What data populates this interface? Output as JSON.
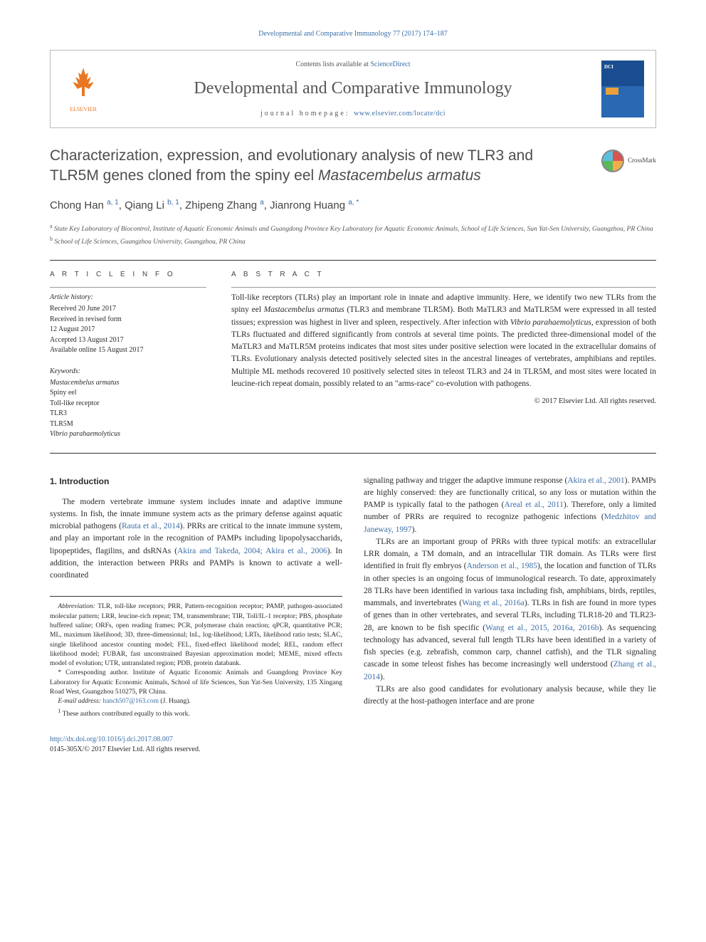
{
  "header": {
    "journal_ref": "Developmental and Comparative Immunology 77 (2017) 174–187",
    "contents_line_prefix": "Contents lists available at ",
    "contents_line_link": "ScienceDirect",
    "journal_title": "Developmental and Comparative Immunology",
    "homepage_prefix": "journal homepage: ",
    "homepage_link": "www.elsevier.com/locate/dci",
    "elsevier_label": "ELSEVIER"
  },
  "crossmark_label": "CrossMark",
  "title": "Characterization, expression, and evolutionary analysis of new TLR3 and TLR5M genes cloned from the spiny eel Mastacembelus armatus",
  "authors_html": "Chong Han <sup>a, 1</sup>, Qiang Li <sup>b, 1</sup>, Zhipeng Zhang <sup>a</sup>, Jianrong Huang <sup>a, *</sup>",
  "affiliations": {
    "a": "State Key Laboratory of Biocontrol, Institute of Aquatic Economic Animals and Guangdong Province Key Laboratory for Aquatic Economic Animals, School of Life Sciences, Sun Yat-Sen University, Guangzhou, PR China",
    "b": "School of Life Sciences, Guangzhou University, Guangzhou, PR China"
  },
  "article_info": {
    "heading": "A R T I C L E  I N F O",
    "history_label": "Article history:",
    "history": [
      "Received 20 June 2017",
      "Received in revised form",
      "12 August 2017",
      "Accepted 13 August 2017",
      "Available online 15 August 2017"
    ],
    "keywords_label": "Keywords:",
    "keywords": [
      "Mastacembelus armatus",
      "Spiny eel",
      "Toll-like receptor",
      "TLR3",
      "TLR5M",
      "Vibrio parahaemolyticus"
    ]
  },
  "abstract": {
    "heading": "A B S T R A C T",
    "text": "Toll-like receptors (TLRs) play an important role in innate and adaptive immunity. Here, we identify two new TLRs from the spiny eel Mastacembelus armatus (TLR3 and membrane TLR5M). Both MaTLR3 and MaTLR5M were expressed in all tested tissues; expression was highest in liver and spleen, respectively. After infection with Vibrio parahaemolyticus, expression of both TLRs fluctuated and differed significantly from controls at several time points. The predicted three-dimensional model of the MaTLR3 and MaTLR5M proteins indicates that most sites under positive selection were located in the extracellular domains of TLRs. Evolutionary analysis detected positively selected sites in the ancestral lineages of vertebrates, amphibians and reptiles. Multiple ML methods recovered 10 positively selected sites in teleost TLR3 and 24 in TLR5M, and most sites were located in leucine-rich repeat domain, possibly related to an \"arms-race\" co-evolution with pathogens.",
    "copyright": "© 2017 Elsevier Ltd. All rights reserved."
  },
  "body": {
    "intro_heading": "1. Introduction",
    "col1_p1_parts": [
      "The modern vertebrate immune system includes innate and adaptive immune systems. In fish, the innate immune system acts as the primary defense against aquatic microbial pathogens (",
      "Rauta et al., 2014",
      "). PRRs are critical to the innate immune system, and play an important role in the recognition of PAMPs including lipopolysaccharids, lipopeptides, flagilins, and dsRNAs (",
      "Akira and Takeda, 2004; Akira et al., 2006",
      "). In addition, the interaction between PRRs and PAMPs is known to activate a well-coordinated"
    ],
    "col2_p1_parts": [
      "signaling pathway and trigger the adaptive immune response (",
      "Akira et al., 2001",
      "). PAMPs are highly conserved: they are functionally critical, so any loss or mutation within the PAMP is typically fatal to the pathogen (",
      "Areal et al., 2011",
      "). Therefore, only a limited number of PRRs are required to recognize pathogenic infections (",
      "Medzhitov and Janeway, 1997",
      ")."
    ],
    "col2_p2_parts": [
      "TLRs are an important group of PRRs with three typical motifs: an extracellular LRR domain, a TM domain, and an intracellular TIR domain. As TLRs were first identified in fruit fly embryos (",
      "Anderson et al., 1985",
      "), the location and function of TLRs in other species is an ongoing focus of immunological research. To date, approximately 28 TLRs have been identified in various taxa including fish, amphibians, birds, reptiles, mammals, and invertebrates (",
      "Wang et al., 2016a",
      "). TLRs in fish are found in more types of genes than in other vertebrates, and several TLRs, including TLR18-20 and TLR23-28, are known to be fish specific (",
      "Wang et al., 2015, 2016a, 2016b",
      "). As sequencing technology has advanced, several full length TLRs have been identified in a variety of fish species (e.g. zebrafish, common carp, channel catfish), and the TLR signaling cascade in some teleost fishes has become increasingly well understood (",
      "Zhang et al., 2014",
      ")."
    ],
    "col2_p3": "TLRs are also good candidates for evolutionary analysis because, while they lie directly at the host-pathogen interface and are prone"
  },
  "footnotes": {
    "abbrev_label": "Abbreviation:",
    "abbrev_text": " TLR, toll-like receptors; PRR, Pattern-recognition receptor; PAMP, pathogen-associated molecular pattern; LRR, leucine-rich repeat; TM, transmembrane; TIR, Toll/IL-1 receptor; PBS, phosphate buffered saline; ORFs, open reading frames; PCR, polymerase chain reaction; qPCR, quantitative PCR; ML, maximum likelihood; 3D, three-dimensional; lnL, log-likelihood; LRTs, likelihood ratio tests; SLAC, single likelihood ancestor counting model; FEL, fixed-effect likelihood model; REL, random effect likelihood model; FUBAR, fast unconstrained Bayesian approximation model; MEME, mixed effects model of evolution; UTR, untranslated region; PDB, protein databank.",
    "corresp": "* Corresponding author. Institute of Aquatic Economic Animals and Guangdong Province Key Laboratory for Aquatic Economic Animals, School of life Sciences, Sun Yat-Sen University, 135 Xingang Road West, Guangzhou 510275, PR China.",
    "email_label": "E-mail address:",
    "email_value": " hanch507@163.com",
    "email_author": " (J. Huang).",
    "equal": "These authors contributed equally to this work."
  },
  "doi": {
    "link": "http://dx.doi.org/10.1016/j.dci.2017.08.007",
    "issn": "0145-305X/© 2017 Elsevier Ltd. All rights reserved."
  },
  "colors": {
    "link": "#3b6fa8",
    "elsevier": "#e87722",
    "text": "#2a2a2a",
    "heading_gray": "#4d4d4d"
  }
}
